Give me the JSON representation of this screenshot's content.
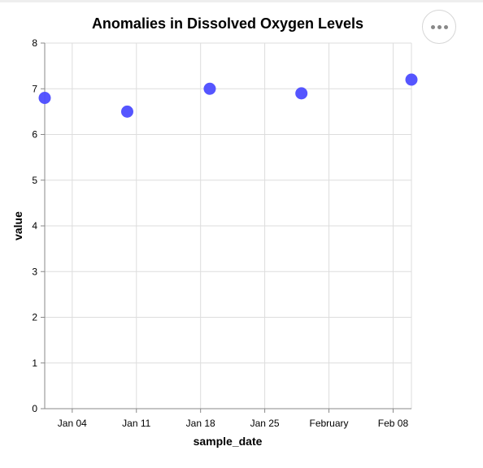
{
  "actions_menu": {
    "icon": "ellipsis-icon"
  },
  "chart_data": {
    "type": "scatter",
    "title": "Anomalies in Dissolved Oxygen Levels",
    "xlabel": "sample_date",
    "ylabel": "value",
    "x_type": "date",
    "xlim": [
      "2024-01-01",
      "2024-02-10"
    ],
    "ylim": [
      0,
      8
    ],
    "x_ticks": [
      {
        "date": "2024-01-04",
        "label": "Jan 04"
      },
      {
        "date": "2024-01-11",
        "label": "Jan 11"
      },
      {
        "date": "2024-01-18",
        "label": "Jan 18"
      },
      {
        "date": "2024-01-25",
        "label": "Jan 25"
      },
      {
        "date": "2024-02-01",
        "label": "February"
      },
      {
        "date": "2024-02-08",
        "label": "Feb 08"
      }
    ],
    "y_ticks": [
      0,
      1,
      2,
      3,
      4,
      5,
      6,
      7,
      8
    ],
    "grid": true,
    "point_color": "#4c4cff",
    "points": [
      {
        "x": "2024-01-01",
        "y": 6.8
      },
      {
        "x": "2024-01-10",
        "y": 6.5
      },
      {
        "x": "2024-01-19",
        "y": 7.0
      },
      {
        "x": "2024-01-29",
        "y": 6.9
      },
      {
        "x": "2024-02-10",
        "y": 7.2
      }
    ]
  }
}
